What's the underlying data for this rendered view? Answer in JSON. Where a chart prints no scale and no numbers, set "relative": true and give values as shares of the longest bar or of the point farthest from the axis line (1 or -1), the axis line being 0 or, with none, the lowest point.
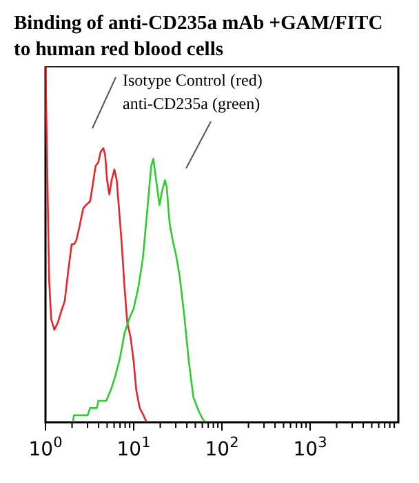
{
  "chart_data": {
    "type": "line",
    "title": "Binding of anti-CD235a mAb +GAM/FITC to human red blood cells",
    "relative": true,
    "log": "x",
    "xlim": [
      1,
      10000
    ],
    "xticks": [
      {
        "value": 1,
        "label": "10$^{0}$"
      },
      {
        "value": 2,
        "label": null
      },
      {
        "value": 3,
        "label": null
      },
      {
        "value": 4,
        "label": null
      },
      {
        "value": 5,
        "label": null
      },
      {
        "value": 6,
        "label": null
      },
      {
        "value": 7,
        "label": null
      },
      {
        "value": 8,
        "label": null
      },
      {
        "value": 9,
        "label": null
      },
      {
        "value": 10,
        "label": "10$^{1}$"
      },
      {
        "value": 20,
        "label": null
      },
      {
        "value": 30,
        "label": null
      },
      {
        "value": 40,
        "label": null
      },
      {
        "value": 50,
        "label": null
      },
      {
        "value": 60,
        "label": null
      },
      {
        "value": 70,
        "label": null
      },
      {
        "value": 80,
        "label": null
      },
      {
        "value": 90,
        "label": null
      },
      {
        "value": 100,
        "label": "10$^{2}$"
      },
      {
        "value": 200,
        "label": null
      },
      {
        "value": 300,
        "label": null
      },
      {
        "value": 400,
        "label": null
      },
      {
        "value": 500,
        "label": null
      },
      {
        "value": 600,
        "label": null
      },
      {
        "value": 700,
        "label": null
      },
      {
        "value": 800,
        "label": null
      },
      {
        "value": 900,
        "label": null
      },
      {
        "value": 1000,
        "label": "10$^{3}$"
      },
      {
        "value": 2000,
        "label": null
      },
      {
        "value": 3000,
        "label": null
      },
      {
        "value": 4000,
        "label": null
      },
      {
        "value": 5000,
        "label": null
      },
      {
        "value": 6000,
        "label": null
      },
      {
        "value": 7000,
        "label": null
      },
      {
        "value": 8000,
        "label": null
      },
      {
        "value": 9000,
        "label": null
      }
    ],
    "tick_labels": "x",
    "grid": false,
    "legend": false,
    "marker": "none",
    "line_style": "solid",
    "annotations": [
      "Isotype Control (red)",
      "anti-CD235a (green)"
    ],
    "series": [
      {
        "color": "#e8262a",
        "x": [
          1,
          1.1,
          1.16,
          1.26,
          1.38,
          1.5,
          1.65,
          1.82,
          1.98,
          2.1,
          2.23,
          2.43,
          2.67,
          2.87,
          3.2,
          3.4,
          3.7,
          3.97,
          4.22,
          4.53,
          4.75,
          4.99,
          5.3,
          5.62,
          6.04,
          6.42,
          6.81,
          7.32,
          7.87,
          8.45,
          9.2,
          10,
          10.7,
          11.7,
          12.9,
          14
        ],
        "values": [
          1,
          0.4,
          0.29,
          0.26,
          0.28,
          0.31,
          0.34,
          0.43,
          0.5,
          0.5,
          0.51,
          0.55,
          0.6,
          0.61,
          0.62,
          0.66,
          0.72,
          0.73,
          0.76,
          0.77,
          0.75,
          0.68,
          0.64,
          0.68,
          0.71,
          0.68,
          0.6,
          0.5,
          0.38,
          0.28,
          0.24,
          0.17,
          0.09,
          0.04,
          0.02,
          0
        ]
      },
      {
        "color": "#2ecc2e",
        "x": [
          2.05,
          2.1,
          3.01,
          3.2,
          3.83,
          3.97,
          4.87,
          5.49,
          6.19,
          6.98,
          7.87,
          8.87,
          10,
          11.3,
          12.7,
          14.3,
          15.8,
          16.7,
          18.2,
          19.6,
          21,
          22.6,
          23.7,
          25.5,
          27.7,
          30.2,
          33.2,
          37.4,
          42.2,
          47.5,
          54.9,
          60.4,
          64.9
        ],
        "values": [
          0,
          0.02,
          0.02,
          0.04,
          0.04,
          0.06,
          0.06,
          0.09,
          0.13,
          0.18,
          0.25,
          0.29,
          0.32,
          0.38,
          0.46,
          0.6,
          0.72,
          0.74,
          0.67,
          0.61,
          0.65,
          0.68,
          0.66,
          0.56,
          0.51,
          0.47,
          0.41,
          0.3,
          0.17,
          0.07,
          0.03,
          0.01,
          0
        ]
      }
    ]
  }
}
